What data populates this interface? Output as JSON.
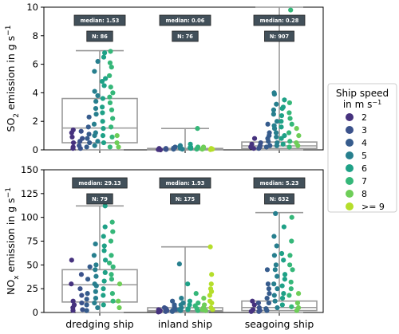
{
  "chart_data": {
    "type": "box-strip",
    "categories": [
      "dredging ship",
      "inland ship",
      "seagoing ship"
    ],
    "legend": {
      "title_line1": "Ship speed",
      "title_line2": "in m s",
      "title_sup": "−1",
      "entries": [
        {
          "label": "2",
          "color": "#46327e"
        },
        {
          "label": "3",
          "color": "#3b528b"
        },
        {
          "label": "4",
          "color": "#365c8d"
        },
        {
          "label": "5",
          "color": "#277f8e"
        },
        {
          "label": "6",
          "color": "#1fa187"
        },
        {
          "label": "7",
          "color": "#35b779"
        },
        {
          "label": "8",
          "color": "#6ece58"
        },
        {
          "label": ">= 9",
          "color": "#b5de2b"
        }
      ]
    },
    "panels": [
      {
        "id": "so2",
        "ylabel_main": "SO",
        "ylabel_sub": "2",
        "ylabel_rest": " emission in g s",
        "ylabel_sup": "−1",
        "ylim": [
          0,
          10
        ],
        "yticks": [
          0,
          2,
          4,
          6,
          8,
          10
        ],
        "boxes": [
          {
            "q1": 0.5,
            "median": 1.53,
            "q3": 3.6,
            "whisker_low": 0.0,
            "whisker_high": 6.95
          },
          {
            "q1": 0.0,
            "median": 0.06,
            "q3": 0.1,
            "whisker_low": 0.0,
            "whisker_high": 1.5
          },
          {
            "q1": 0.1,
            "median": 0.28,
            "q3": 0.55,
            "whisker_low": 0.0,
            "whisker_high": 10.0
          }
        ],
        "badges": [
          {
            "median": "median: 1.53",
            "n": "N: 86"
          },
          {
            "median": "median: 0.06",
            "n": "N: 76"
          },
          {
            "median": "median: 0.28",
            "n": "N: 907"
          }
        ],
        "points": [
          [
            [
              2,
              [
                0.2,
                0.5,
                1.2,
                0.9,
                0.1,
                1.4
              ]
            ],
            [
              3,
              [
                0.3,
                0.8,
                1.3,
                0.1,
                0.6
              ]
            ],
            [
              4,
              [
                0.5,
                1.1,
                0.2,
                1.6,
                0.8,
                2.3
              ]
            ],
            [
              5,
              [
                1.0,
                2.5,
                3.4,
                4.1,
                1.8,
                0.6,
                6.2,
                5.5,
                2.9,
                3.8,
                0.3,
                1.2
              ]
            ],
            [
              6,
              [
                6.5,
                4.5,
                2.0,
                3.0,
                5.0,
                1.5,
                2.6,
                0.5,
                3.6,
                4.8,
                6.8,
                1.0
              ]
            ],
            [
              7,
              [
                6.9,
                5.2,
                4.0,
                3.3,
                2.2,
                1.6,
                6.1,
                5.8,
                4.4,
                0.9,
                2.8,
                3.7,
                0.2
              ]
            ],
            [
              8,
              [
                0.2,
                1.0,
                0.5
              ]
            ]
          ],
          [
            [
              2,
              [
                0.02,
                0.05,
                0.1,
                0.0
              ]
            ],
            [
              3,
              [
                0.05,
                0.1,
                0.03
              ]
            ],
            [
              4,
              [
                0.08,
                0.2,
                0.05,
                0.12
              ]
            ],
            [
              5,
              [
                0.1,
                0.3,
                0.05,
                0.25,
                0.15
              ]
            ],
            [
              6,
              [
                0.15,
                0.4,
                0.1,
                0.2
              ]
            ],
            [
              7,
              [
                0.2,
                1.5,
                0.1,
                0.05
              ]
            ],
            [
              8,
              [
                0.05,
                0.1,
                0.2
              ]
            ],
            [
              9,
              [
                0.02,
                0.1,
                0.05
              ]
            ]
          ],
          [
            [
              2,
              [
                0.1,
                0.4,
                0.8,
                0.2
              ]
            ],
            [
              3,
              [
                0.2,
                0.5,
                0.3,
                0.1
              ]
            ],
            [
              4,
              [
                0.3,
                0.8,
                1.2,
                0.6,
                1.8,
                0.2,
                1.0
              ]
            ],
            [
              5,
              [
                0.5,
                1.5,
                2.5,
                4.0,
                3.2,
                0.9,
                1.2,
                2.0,
                3.9,
                0.3,
                1.7,
                2.8
              ]
            ],
            [
              6,
              [
                0.8,
                2.0,
                3.0,
                3.5,
                1.0,
                2.4,
                0.4,
                1.6,
                2.9
              ]
            ],
            [
              7,
              [
                9.8,
                1.2,
                2.2,
                3.3,
                0.6,
                1.8,
                2.6,
                0.2
              ]
            ],
            [
              8,
              [
                0.5,
                1.0,
                1.5,
                0.3
              ]
            ]
          ]
        ]
      },
      {
        "id": "nox",
        "ylabel_main": "NO",
        "ylabel_sub": "x",
        "ylabel_rest": " emission in g s",
        "ylabel_sup": "−1",
        "ylim": [
          0,
          150
        ],
        "yticks": [
          0,
          25,
          50,
          75,
          100,
          125,
          150
        ],
        "boxes": [
          {
            "q1": 11,
            "median": 29.13,
            "q3": 45,
            "whisker_low": 0,
            "whisker_high": 112
          },
          {
            "q1": 1,
            "median": 1.93,
            "q3": 5,
            "whisker_low": 0,
            "whisker_high": 69
          },
          {
            "q1": 2,
            "median": 5.23,
            "q3": 12,
            "whisker_low": 0,
            "whisker_high": 105
          }
        ],
        "badges": [
          {
            "median": "median: 29.13",
            "n": "N: 79"
          },
          {
            "median": "median: 1.93",
            "n": "N: 175"
          },
          {
            "median": "median: 5.23",
            "n": "N: 632"
          }
        ],
        "points": [
          [
            [
              2,
              [
                55,
                12,
                5,
                30,
                8,
                2
              ]
            ],
            [
              3,
              [
                10,
                25,
                3,
                18,
                40
              ]
            ],
            [
              4,
              [
                20,
                35,
                8,
                48,
                14,
                2
              ]
            ],
            [
              5,
              [
                30,
                45,
                60,
                28,
                15,
                72,
                38,
                5,
                50,
                22,
                10
              ]
            ],
            [
              6,
              [
                112,
                65,
                80,
                42,
                33,
                25,
                55,
                90,
                18,
                8,
                70
              ]
            ],
            [
              7,
              [
                95,
                85,
                60,
                48,
                35,
                20,
                75,
                52,
                12,
                40
              ]
            ],
            [
              8,
              [
                5,
                12,
                30
              ]
            ]
          ],
          [
            [
              2,
              [
                1,
                3,
                0.5,
                2
              ]
            ],
            [
              3,
              [
                2,
                5,
                1,
                4
              ]
            ],
            [
              4,
              [
                3,
                8,
                1,
                6,
                12,
                2
              ]
            ],
            [
              5,
              [
                5,
                2,
                51,
                10,
                15,
                3,
                8
              ]
            ],
            [
              6,
              [
                30,
                8,
                3,
                12,
                4
              ]
            ],
            [
              7,
              [
                10,
                4,
                20,
                2,
                7
              ]
            ],
            [
              8,
              [
                5,
                15,
                2,
                8,
                3
              ]
            ],
            [
              9,
              [
                69,
                40,
                25,
                30,
                10,
                5,
                18,
                12,
                3,
                22
              ]
            ]
          ],
          [
            [
              2,
              [
                3,
                8,
                1,
                12
              ]
            ],
            [
              3,
              [
                5,
                2,
                10,
                1
              ]
            ],
            [
              4,
              [
                10,
                20,
                4,
                30,
                15,
                45,
                2,
                25
              ]
            ],
            [
              5,
              [
                104,
                60,
                50,
                38,
                25,
                12,
                5,
                70,
                45,
                30,
                18,
                80
              ]
            ],
            [
              6,
              [
                90,
                55,
                40,
                28,
                15,
                8,
                62,
                35,
                20
              ]
            ],
            [
              7,
              [
                100,
                75,
                50,
                32,
                18,
                6,
                45,
                25,
                60
              ]
            ],
            [
              8,
              [
                10,
                5,
                20,
                2
              ]
            ]
          ]
        ]
      }
    ]
  }
}
